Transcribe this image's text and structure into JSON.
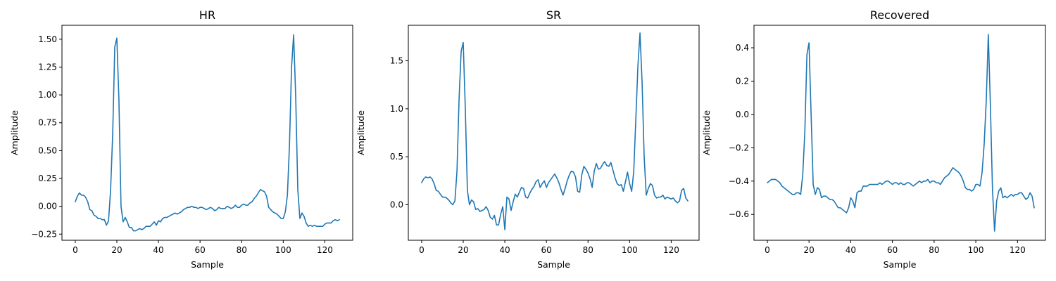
{
  "figure": {
    "background": "#ffffff",
    "line_color": "#1f77b4"
  },
  "chart_data": [
    {
      "type": "line",
      "title": "HR",
      "xlabel": "Sample",
      "ylabel": "Amplitude",
      "xlim": [
        -6.4,
        133.4
      ],
      "ylim": [
        -0.305,
        1.625
      ],
      "xticks": [
        0,
        20,
        40,
        60,
        80,
        100,
        120
      ],
      "yticks": [
        -0.25,
        0.0,
        0.25,
        0.5,
        0.75,
        1.0,
        1.25,
        1.5
      ],
      "ytick_labels": [
        "−0.25",
        "0.00",
        "0.25",
        "0.50",
        "0.75",
        "1.00",
        "1.25",
        "1.50"
      ],
      "series": [
        {
          "values": [
            0.04,
            0.09,
            0.12,
            0.1,
            0.1,
            0.08,
            0.04,
            -0.03,
            -0.04,
            -0.08,
            -0.09,
            -0.11,
            -0.11,
            -0.12,
            -0.12,
            -0.17,
            -0.13,
            0.15,
            0.65,
            1.43,
            1.51,
            0.95,
            0.0,
            -0.14,
            -0.1,
            -0.14,
            -0.19,
            -0.19,
            -0.22,
            -0.22,
            -0.21,
            -0.2,
            -0.21,
            -0.2,
            -0.18,
            -0.18,
            -0.18,
            -0.16,
            -0.14,
            -0.17,
            -0.13,
            -0.14,
            -0.11,
            -0.1,
            -0.1,
            -0.09,
            -0.08,
            -0.07,
            -0.06,
            -0.07,
            -0.06,
            -0.05,
            -0.03,
            -0.02,
            -0.01,
            -0.01,
            0.0,
            -0.01,
            -0.01,
            -0.02,
            -0.01,
            -0.01,
            -0.02,
            -0.03,
            -0.02,
            -0.01,
            -0.02,
            -0.04,
            -0.03,
            -0.01,
            -0.02,
            -0.02,
            -0.02,
            0.0,
            -0.01,
            -0.02,
            -0.01,
            0.01,
            -0.01,
            -0.01,
            0.01,
            0.02,
            0.01,
            0.01,
            0.03,
            0.04,
            0.07,
            0.09,
            0.12,
            0.15,
            0.14,
            0.13,
            0.09,
            -0.01,
            -0.03,
            -0.05,
            -0.06,
            -0.07,
            -0.09,
            -0.11,
            -0.11,
            -0.05,
            0.1,
            0.55,
            1.25,
            1.54,
            0.98,
            0.15,
            -0.11,
            -0.06,
            -0.09,
            -0.15,
            -0.18,
            -0.17,
            -0.18,
            -0.17,
            -0.18,
            -0.18,
            -0.18,
            -0.18,
            -0.16,
            -0.15,
            -0.15,
            -0.15,
            -0.13,
            -0.12,
            -0.13,
            -0.12
          ]
        }
      ]
    },
    {
      "type": "line",
      "title": "SR",
      "xlabel": "Sample",
      "ylabel": "Amplitude",
      "xlim": [
        -6.4,
        133.4
      ],
      "ylim": [
        -0.37,
        1.87
      ],
      "xticks": [
        0,
        20,
        40,
        60,
        80,
        100,
        120
      ],
      "yticks": [
        0.0,
        0.5,
        1.0,
        1.5
      ],
      "ytick_labels": [
        "0.0",
        "0.5",
        "1.0",
        "1.5"
      ],
      "series": [
        {
          "values": [
            0.23,
            0.27,
            0.29,
            0.28,
            0.29,
            0.27,
            0.22,
            0.15,
            0.14,
            0.11,
            0.08,
            0.08,
            0.07,
            0.05,
            0.02,
            0.0,
            0.04,
            0.35,
            1.1,
            1.6,
            1.69,
            1.0,
            0.15,
            0.0,
            0.05,
            0.03,
            -0.05,
            -0.04,
            -0.07,
            -0.06,
            -0.05,
            -0.02,
            -0.06,
            -0.13,
            -0.15,
            -0.11,
            -0.21,
            -0.21,
            -0.1,
            -0.02,
            -0.26,
            0.08,
            0.06,
            -0.06,
            0.03,
            0.11,
            0.08,
            0.13,
            0.18,
            0.17,
            0.08,
            0.07,
            0.12,
            0.16,
            0.19,
            0.24,
            0.26,
            0.18,
            0.22,
            0.25,
            0.18,
            0.23,
            0.26,
            0.29,
            0.32,
            0.28,
            0.23,
            0.16,
            0.1,
            0.17,
            0.25,
            0.31,
            0.35,
            0.34,
            0.29,
            0.14,
            0.13,
            0.31,
            0.4,
            0.37,
            0.33,
            0.27,
            0.18,
            0.35,
            0.43,
            0.37,
            0.38,
            0.42,
            0.45,
            0.41,
            0.4,
            0.44,
            0.36,
            0.28,
            0.22,
            0.2,
            0.21,
            0.14,
            0.24,
            0.34,
            0.22,
            0.14,
            0.35,
            0.9,
            1.45,
            1.79,
            1.28,
            0.5,
            0.1,
            0.17,
            0.22,
            0.2,
            0.1,
            0.07,
            0.08,
            0.08,
            0.1,
            0.06,
            0.08,
            0.07,
            0.06,
            0.07,
            0.04,
            0.02,
            0.04,
            0.15,
            0.17,
            0.07,
            0.04
          ]
        }
      ]
    },
    {
      "type": "line",
      "title": "Recovered",
      "xlabel": "Sample",
      "ylabel": "Amplitude",
      "xlim": [
        -6.4,
        133.4
      ],
      "ylim": [
        -0.755,
        0.535
      ],
      "xticks": [
        0,
        20,
        40,
        60,
        80,
        100,
        120
      ],
      "yticks": [
        -0.6,
        -0.4,
        -0.2,
        0.0,
        0.2,
        0.4
      ],
      "ytick_labels": [
        "−0.6",
        "−0.4",
        "−0.2",
        "0.0",
        "0.2",
        "0.4"
      ],
      "series": [
        {
          "values": [
            -0.41,
            -0.4,
            -0.39,
            -0.39,
            -0.39,
            -0.4,
            -0.41,
            -0.43,
            -0.44,
            -0.45,
            -0.46,
            -0.47,
            -0.48,
            -0.48,
            -0.47,
            -0.47,
            -0.48,
            -0.36,
            -0.1,
            0.36,
            0.43,
            0.0,
            -0.42,
            -0.48,
            -0.44,
            -0.45,
            -0.5,
            -0.49,
            -0.49,
            -0.5,
            -0.51,
            -0.51,
            -0.52,
            -0.54,
            -0.56,
            -0.56,
            -0.57,
            -0.58,
            -0.59,
            -0.56,
            -0.5,
            -0.52,
            -0.56,
            -0.47,
            -0.46,
            -0.46,
            -0.43,
            -0.43,
            -0.43,
            -0.42,
            -0.42,
            -0.42,
            -0.42,
            -0.42,
            -0.41,
            -0.42,
            -0.41,
            -0.4,
            -0.4,
            -0.41,
            -0.42,
            -0.41,
            -0.41,
            -0.42,
            -0.41,
            -0.42,
            -0.42,
            -0.41,
            -0.41,
            -0.42,
            -0.43,
            -0.42,
            -0.41,
            -0.4,
            -0.41,
            -0.4,
            -0.4,
            -0.39,
            -0.41,
            -0.4,
            -0.4,
            -0.41,
            -0.41,
            -0.42,
            -0.4,
            -0.38,
            -0.37,
            -0.36,
            -0.34,
            -0.32,
            -0.33,
            -0.34,
            -0.35,
            -0.37,
            -0.4,
            -0.44,
            -0.45,
            -0.45,
            -0.46,
            -0.45,
            -0.42,
            -0.42,
            -0.43,
            -0.35,
            -0.18,
            0.08,
            0.48,
            0.05,
            -0.45,
            -0.7,
            -0.52,
            -0.46,
            -0.44,
            -0.5,
            -0.49,
            -0.5,
            -0.49,
            -0.48,
            -0.49,
            -0.48,
            -0.48,
            -0.47,
            -0.47,
            -0.49,
            -0.51,
            -0.5,
            -0.47,
            -0.49,
            -0.56
          ]
        }
      ]
    }
  ]
}
